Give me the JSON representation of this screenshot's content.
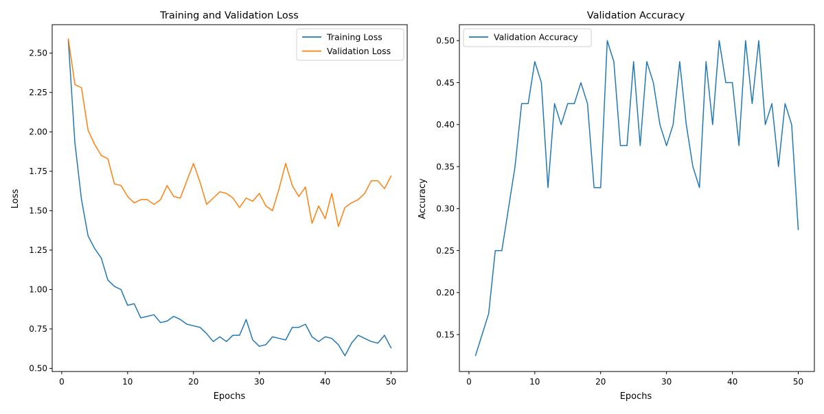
{
  "chart_data": [
    {
      "type": "line",
      "title": "Training and Validation Loss",
      "xlabel": "Epochs",
      "ylabel": "Loss",
      "xlim": [
        -1.45,
        52.45
      ],
      "ylim": [
        0.48,
        2.68
      ],
      "xticks": [
        0,
        10,
        20,
        30,
        40,
        50
      ],
      "yticks": [
        0.5,
        0.75,
        1.0,
        1.25,
        1.5,
        1.75,
        2.0,
        2.25,
        2.5
      ],
      "ytick_labels": [
        "0.50",
        "0.75",
        "1.00",
        "1.25",
        "1.50",
        "1.75",
        "2.00",
        "2.25",
        "2.50"
      ],
      "grid": false,
      "legend": "upper right",
      "x": [
        1,
        2,
        3,
        4,
        5,
        6,
        7,
        8,
        9,
        10,
        11,
        12,
        13,
        14,
        15,
        16,
        17,
        18,
        19,
        20,
        21,
        22,
        23,
        24,
        25,
        26,
        27,
        28,
        29,
        30,
        31,
        32,
        33,
        34,
        35,
        36,
        37,
        38,
        39,
        40,
        41,
        42,
        43,
        44,
        45,
        46,
        47,
        48,
        49,
        50
      ],
      "series": [
        {
          "name": "Training Loss",
          "color": "#1f77b4",
          "values": [
            2.58,
            1.93,
            1.57,
            1.34,
            1.26,
            1.2,
            1.06,
            1.02,
            1.0,
            0.9,
            0.91,
            0.82,
            0.83,
            0.84,
            0.79,
            0.8,
            0.83,
            0.81,
            0.78,
            0.77,
            0.76,
            0.72,
            0.67,
            0.7,
            0.67,
            0.71,
            0.71,
            0.81,
            0.68,
            0.64,
            0.65,
            0.7,
            0.69,
            0.68,
            0.76,
            0.76,
            0.78,
            0.7,
            0.67,
            0.7,
            0.69,
            0.65,
            0.58,
            0.66,
            0.71,
            0.69,
            0.67,
            0.66,
            0.71,
            0.63
          ]
        },
        {
          "name": "Validation Loss",
          "color": "#ff7f0e",
          "values": [
            2.59,
            2.3,
            2.28,
            2.01,
            1.92,
            1.85,
            1.83,
            1.67,
            1.66,
            1.59,
            1.55,
            1.57,
            1.57,
            1.54,
            1.57,
            1.66,
            1.59,
            1.58,
            1.69,
            1.8,
            1.68,
            1.54,
            1.58,
            1.62,
            1.61,
            1.58,
            1.52,
            1.58,
            1.56,
            1.61,
            1.53,
            1.5,
            1.64,
            1.8,
            1.66,
            1.59,
            1.65,
            1.42,
            1.53,
            1.45,
            1.61,
            1.4,
            1.52,
            1.55,
            1.57,
            1.61,
            1.69,
            1.69,
            1.64,
            1.72
          ]
        }
      ]
    },
    {
      "type": "line",
      "title": "Validation Accuracy",
      "xlabel": "Epochs",
      "ylabel": "Accuracy",
      "xlim": [
        -1.45,
        52.45
      ],
      "ylim": [
        0.106,
        0.519
      ],
      "xticks": [
        0,
        10,
        20,
        30,
        40,
        50
      ],
      "yticks": [
        0.15,
        0.2,
        0.25,
        0.3,
        0.35,
        0.4,
        0.45,
        0.5
      ],
      "ytick_labels": [
        "0.15",
        "0.20",
        "0.25",
        "0.30",
        "0.35",
        "0.40",
        "0.45",
        "0.50"
      ],
      "grid": false,
      "legend": "upper left",
      "x": [
        1,
        2,
        3,
        4,
        5,
        6,
        7,
        8,
        9,
        10,
        11,
        12,
        13,
        14,
        15,
        16,
        17,
        18,
        19,
        20,
        21,
        22,
        23,
        24,
        25,
        26,
        27,
        28,
        29,
        30,
        31,
        32,
        33,
        34,
        35,
        36,
        37,
        38,
        39,
        40,
        41,
        42,
        43,
        44,
        45,
        46,
        47,
        48,
        49,
        50
      ],
      "series": [
        {
          "name": "Validation Accuracy",
          "color": "#1f77b4",
          "values": [
            0.125,
            0.15,
            0.175,
            0.25,
            0.25,
            0.3,
            0.35,
            0.425,
            0.425,
            0.475,
            0.45,
            0.325,
            0.425,
            0.4,
            0.425,
            0.425,
            0.45,
            0.425,
            0.325,
            0.325,
            0.5,
            0.475,
            0.375,
            0.375,
            0.475,
            0.375,
            0.475,
            0.45,
            0.4,
            0.375,
            0.4,
            0.475,
            0.4,
            0.35,
            0.325,
            0.475,
            0.4,
            0.5,
            0.45,
            0.45,
            0.375,
            0.5,
            0.425,
            0.5,
            0.4,
            0.425,
            0.35,
            0.425,
            0.4,
            0.275
          ]
        }
      ]
    }
  ]
}
